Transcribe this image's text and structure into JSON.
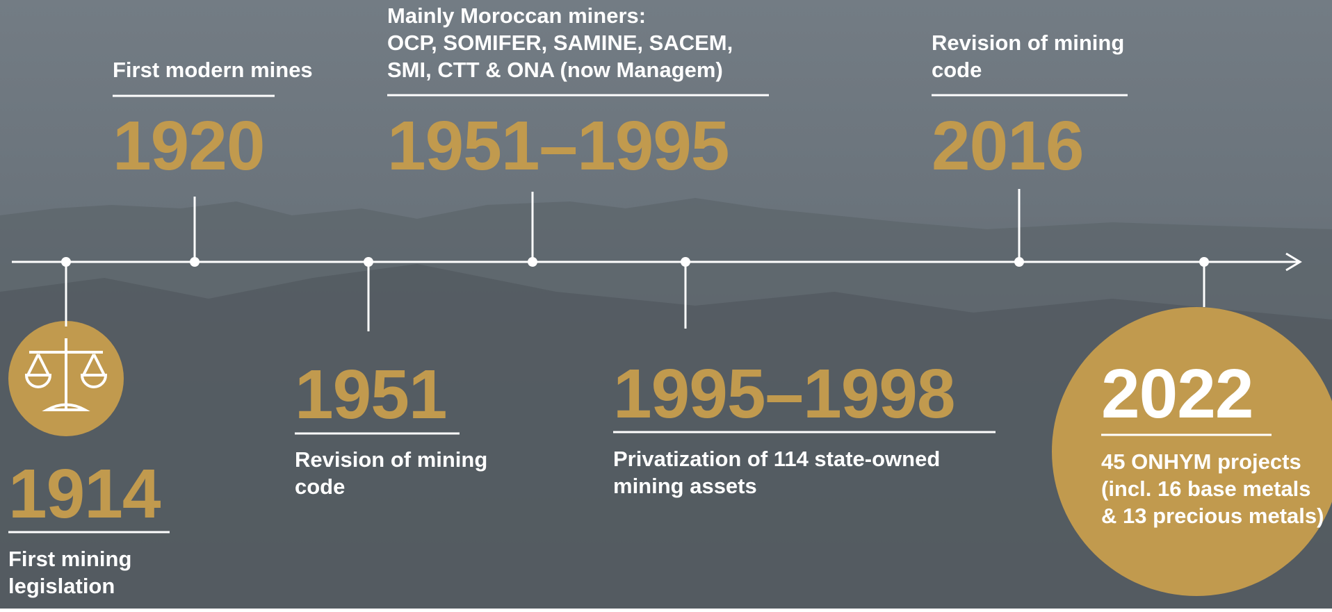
{
  "events": [
    {
      "year": "1914",
      "description": [
        "First mining",
        "legislation"
      ]
    },
    {
      "year": "1920",
      "description": [
        "First modern mines"
      ]
    },
    {
      "year": "1951",
      "description": [
        "Revision of mining",
        "code"
      ]
    },
    {
      "year": "1951–1995",
      "description": [
        "Mainly Moroccan miners:",
        "OCP, SOMIFER, SAMINE, SACEM,",
        "SMI, CTT & ONA (now Managem)"
      ]
    },
    {
      "year": "1995–1998",
      "description": [
        "Privatization of 114 state-owned",
        "mining assets"
      ]
    },
    {
      "year": "2016",
      "description": [
        "Revision of mining",
        "code"
      ]
    },
    {
      "year": "2022",
      "description": [
        "45 ONHYM projects",
        "(incl. 16 base metals",
        "& 13 precious metals)"
      ]
    }
  ]
}
